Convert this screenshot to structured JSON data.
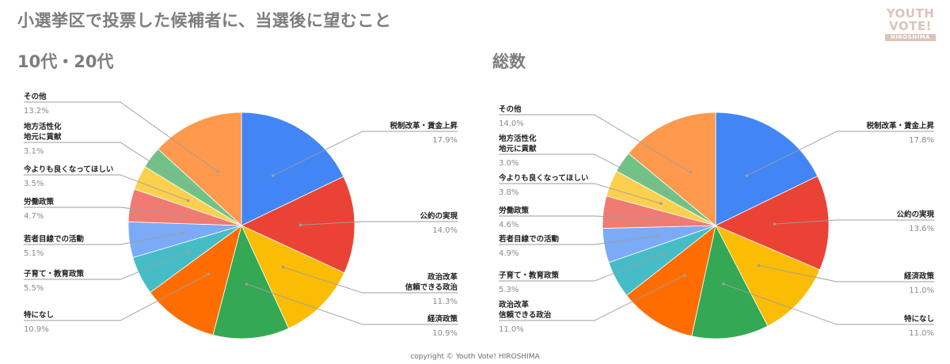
{
  "page": {
    "title": "小選挙区で投票した候補者に、当選後に望むこと",
    "copyright": "copyright © Youth Vote! HIROSHIMA",
    "logo": {
      "line1": "YOUTH",
      "line2": "VOTE!",
      "line3": "HIROSHIMA"
    }
  },
  "colors": {
    "blue": "#4285f4",
    "red": "#ea4335",
    "yellow": "#fbbc04",
    "green": "#34a853",
    "orange": "#ff6d01",
    "teal": "#46bdc6",
    "light_blue": "#7baaf7",
    "salmon": "#f07b72",
    "light_yellow": "#fcd04f",
    "light_green": "#71c287",
    "light_orange": "#ff994d"
  },
  "chart_data": [
    {
      "type": "pie",
      "title": "10代・20代",
      "slices": [
        {
          "label": "税制改革・賃金上昇",
          "value": 17.9,
          "display": "17.9%",
          "color": "#4285f4"
        },
        {
          "label": "公約の実現",
          "value": 14.0,
          "display": "14.0%",
          "color": "#ea4335"
        },
        {
          "label": "政治改革\n信頼できる政治",
          "value": 11.3,
          "display": "11.3%",
          "color": "#fbbc04"
        },
        {
          "label": "経済政策",
          "value": 10.9,
          "display": "10.9%",
          "color": "#34a853"
        },
        {
          "label": "特になし",
          "value": 10.9,
          "display": "10.9%",
          "color": "#ff6d01"
        },
        {
          "label": "子育て・教育政策",
          "value": 5.5,
          "display": "5.5%",
          "color": "#46bdc6"
        },
        {
          "label": "若者目線での活動",
          "value": 5.1,
          "display": "5.1%",
          "color": "#7baaf7"
        },
        {
          "label": "労働政策",
          "value": 4.7,
          "display": "4.7%",
          "color": "#f07b72"
        },
        {
          "label": "今よりも良くなってほしい",
          "value": 3.5,
          "display": "3.5%",
          "color": "#fcd04f"
        },
        {
          "label": "地方活性化\n地元に貢献",
          "value": 3.1,
          "display": "3.1%",
          "color": "#71c287"
        },
        {
          "label": "その他",
          "value": 13.2,
          "display": "13.2%",
          "color": "#ff994d"
        }
      ]
    },
    {
      "type": "pie",
      "title": "総数",
      "slices": [
        {
          "label": "税制改革・賃金上昇",
          "value": 17.8,
          "display": "17.8%",
          "color": "#4285f4"
        },
        {
          "label": "公約の実現",
          "value": 13.6,
          "display": "13.6%",
          "color": "#ea4335"
        },
        {
          "label": "経済政策",
          "value": 11.0,
          "display": "11.0%",
          "color": "#fbbc04"
        },
        {
          "label": "特になし",
          "value": 11.0,
          "display": "11.0%",
          "color": "#34a853"
        },
        {
          "label": "政治改革\n信頼できる政治",
          "value": 11.0,
          "display": "11.0%",
          "color": "#ff6d01"
        },
        {
          "label": "子育て・教育政策",
          "value": 5.3,
          "display": "5.3%",
          "color": "#46bdc6"
        },
        {
          "label": "若者目線での活動",
          "value": 4.9,
          "display": "4.9%",
          "color": "#7baaf7"
        },
        {
          "label": "労働政策",
          "value": 4.6,
          "display": "4.6%",
          "color": "#f07b72"
        },
        {
          "label": "今よりも良くなってほしい",
          "value": 3.8,
          "display": "3.8%",
          "color": "#fcd04f"
        },
        {
          "label": "地方活性化\n地元に貢献",
          "value": 3.0,
          "display": "3.0%",
          "color": "#71c287"
        },
        {
          "label": "その他",
          "value": 14.0,
          "display": "14.0%",
          "color": "#ff994d"
        }
      ]
    }
  ]
}
